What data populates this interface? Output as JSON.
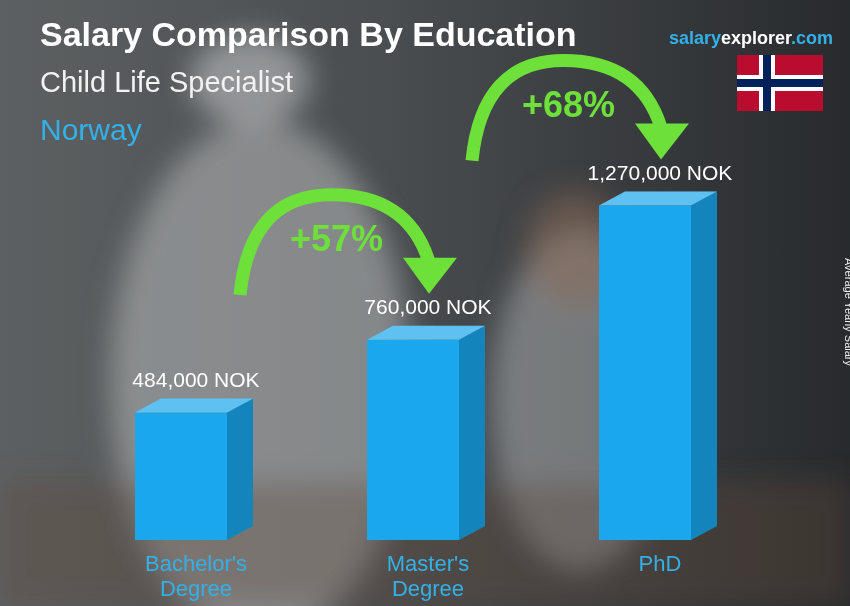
{
  "chart_data": {
    "type": "bar",
    "title": "Salary Comparison By Education",
    "subtitle": "Child Life Specialist",
    "country": "Norway",
    "source": [
      "salary",
      "explorer",
      ".com"
    ],
    "y_label": "Average Yearly Salary",
    "categories": [
      "Bachelor's Degree",
      "Master's Degree",
      "PhD"
    ],
    "values": [
      484000,
      760000,
      1270000
    ],
    "value_labels": [
      "484,000 NOK",
      "760,000 NOK",
      "1,270,000 NOK"
    ],
    "color": "#1aa7ec",
    "ylim": [
      0,
      1500000
    ],
    "data_labels": true,
    "tick_labels": "x",
    "grid": false,
    "annotations": [
      "+57%",
      "+68%"
    ]
  }
}
